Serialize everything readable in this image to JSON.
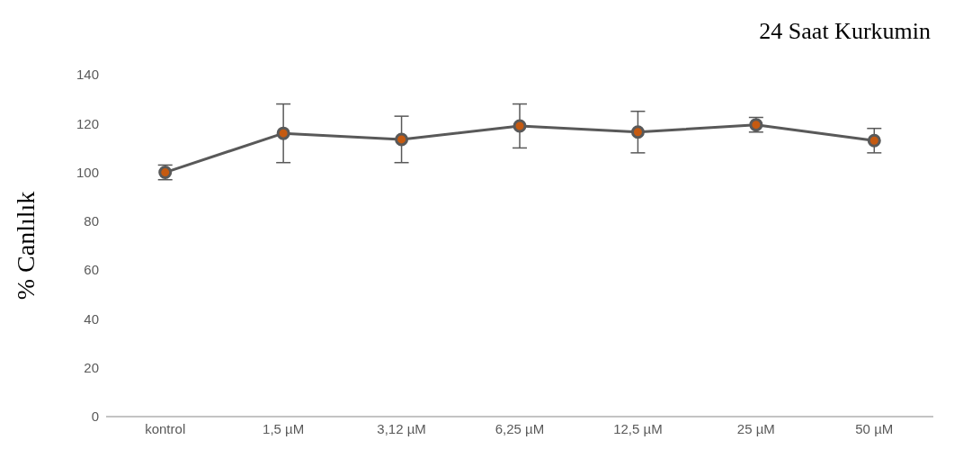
{
  "chart_data": {
    "type": "line",
    "title": "24 Saat Kurkumin",
    "ylabel": "% Canlılık",
    "categories": [
      "kontrol",
      "1,5 µM",
      "3,12 µM",
      "6,25 µM",
      "12,5 µM",
      "25 µM",
      "50 µM"
    ],
    "series": [
      {
        "color": "#595959",
        "values": [
          100,
          116,
          113.5,
          119,
          116.5,
          119.5,
          113
        ],
        "errors": [
          3,
          12,
          9.5,
          9,
          8.5,
          3,
          5
        ]
      }
    ],
    "ylim": [
      0,
      140
    ],
    "yticks": [
      0,
      20,
      40,
      60,
      80,
      100,
      120,
      140
    ],
    "marker": "circle",
    "line_style": "solid"
  }
}
